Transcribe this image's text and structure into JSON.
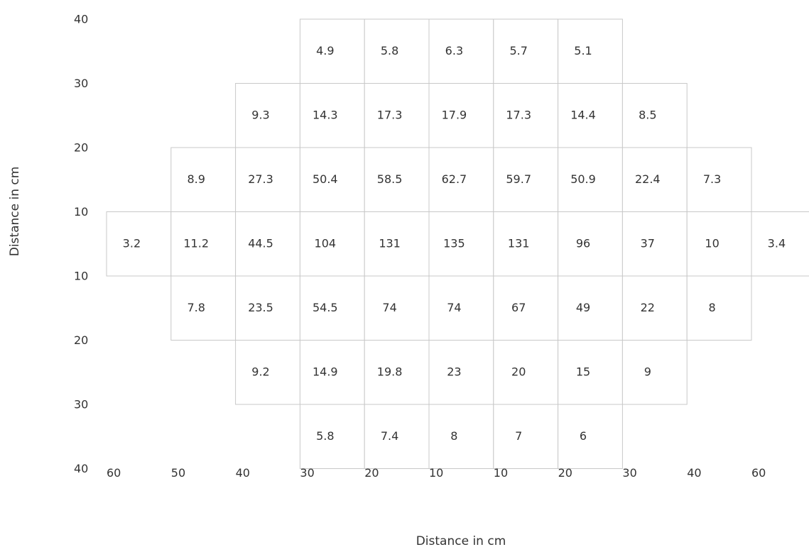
{
  "chart_data": {
    "type": "heatmap",
    "xlabel": "Distance in cm",
    "ylabel": "Distance in cm",
    "x_ticks": [
      "60",
      "50",
      "40",
      "30",
      "20",
      "10",
      "10",
      "20",
      "30",
      "40",
      "60"
    ],
    "y_ticks": [
      "40",
      "30",
      "20",
      "10",
      "10",
      "20",
      "30",
      "40"
    ],
    "rows": [
      {
        "start_col": 3,
        "values": [
          "4.9",
          "5.8",
          "6.3",
          "5.7",
          "5.1"
        ]
      },
      {
        "start_col": 2,
        "values": [
          "9.3",
          "14.3",
          "17.3",
          "17.9",
          "17.3",
          "14.4",
          "8.5"
        ]
      },
      {
        "start_col": 1,
        "values": [
          "8.9",
          "27.3",
          "50.4",
          "58.5",
          "62.7",
          "59.7",
          "50.9",
          "22.4",
          "7.3"
        ]
      },
      {
        "start_col": 0,
        "values": [
          "3.2",
          "11.2",
          "44.5",
          "104",
          "131",
          "135",
          "131",
          "96",
          "37",
          "10",
          "3.4"
        ]
      },
      {
        "start_col": 1,
        "values": [
          "7.8",
          "23.5",
          "54.5",
          "74",
          "74",
          "67",
          "49",
          "22",
          "8"
        ]
      },
      {
        "start_col": 2,
        "values": [
          "9.2",
          "14.9",
          "19.8",
          "23",
          "20",
          "15",
          "9"
        ]
      },
      {
        "start_col": 3,
        "values": [
          "5.8",
          "7.4",
          "8",
          "7",
          "6"
        ]
      }
    ],
    "grid": true,
    "colors": {
      "cell_border": "#c8c8c8",
      "text": "#333333"
    }
  }
}
